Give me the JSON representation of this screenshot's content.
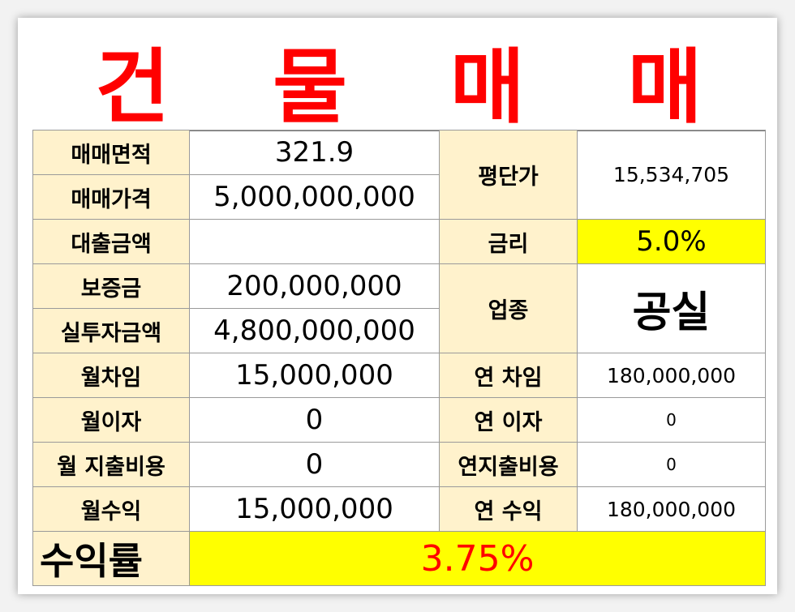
{
  "title": "건 물 매 매",
  "rows": {
    "area": {
      "label": "매매면적",
      "value": "321.9"
    },
    "price": {
      "label": "매매가격",
      "value": "5,000,000,000"
    },
    "price_per_pyeong": {
      "label": "평단가",
      "value": "15,534,705"
    },
    "loan": {
      "label": "대출금액",
      "value": ""
    },
    "interest_rate": {
      "label": "금리",
      "value": "5.0%"
    },
    "deposit": {
      "label": "보증금",
      "value": "200,000,000"
    },
    "business_type": {
      "label": "업종",
      "value": "공실"
    },
    "actual_investment": {
      "label": "실투자금액",
      "value": "4,800,000,000"
    },
    "monthly_rent": {
      "label": "월차임",
      "value": "15,000,000"
    },
    "annual_rent": {
      "label": "연 차임",
      "value": "180,000,000"
    },
    "monthly_interest": {
      "label": "월이자",
      "value": "0"
    },
    "annual_interest": {
      "label": "연 이자",
      "value": "0"
    },
    "monthly_expense": {
      "label": "월 지출비용",
      "value": "0"
    },
    "annual_expense": {
      "label": "연지출비용",
      "value": "0"
    },
    "monthly_income": {
      "label": "월수익",
      "value": "15,000,000"
    },
    "annual_income": {
      "label": "연 수익",
      "value": "180,000,000"
    },
    "yield": {
      "label": "수익률",
      "value": "3.75%"
    }
  },
  "colors": {
    "title": "#ff0000",
    "label_bg": "#fff2cc",
    "highlight": "#ffff00",
    "yield_text": "#ff0000"
  }
}
